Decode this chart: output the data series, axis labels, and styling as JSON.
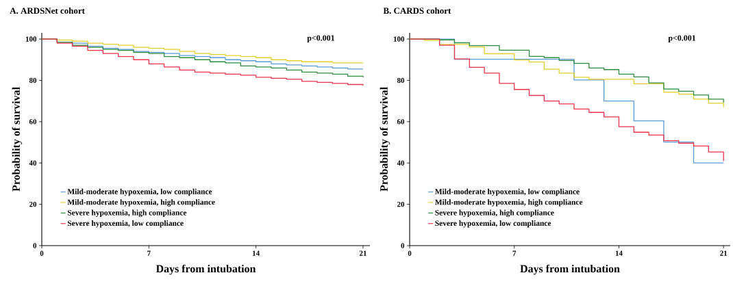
{
  "chart_data": [
    {
      "type": "step",
      "title": "A. ARDSNet cohort",
      "xlabel": "Days from intubation",
      "ylabel": "Probability of survival",
      "xlim": [
        0,
        21.45
      ],
      "ylim": [
        0,
        103
      ],
      "xticks": [
        0,
        7,
        14,
        21
      ],
      "yticks": [
        0,
        20,
        40,
        60,
        80,
        100
      ],
      "legend": "bottom left",
      "annotations": [
        "p<0.001"
      ],
      "series": [
        {
          "name": "Mild-moderate hypoxemia, low compliance",
          "color": "#5b9bd5",
          "x": [
            0,
            1,
            2,
            3,
            4,
            5,
            6,
            7,
            8,
            9,
            10,
            11,
            12,
            13,
            14,
            15,
            16,
            17,
            18,
            19,
            20,
            21
          ],
          "values": [
            100,
            98.5,
            98,
            96.5,
            95.5,
            95,
            94,
            93.5,
            93,
            92,
            91.5,
            91,
            90,
            89.5,
            89,
            88,
            87.5,
            87,
            86.5,
            86,
            85.5,
            85.5
          ]
        },
        {
          "name": "Mild-moderate hypoxemia, high compliance",
          "color": "#e3cf2b",
          "x": [
            0,
            1,
            2,
            3,
            4,
            5,
            6,
            7,
            8,
            9,
            10,
            11,
            12,
            13,
            14,
            15,
            16,
            17,
            18,
            19,
            20,
            21
          ],
          "values": [
            100,
            99.5,
            99,
            98,
            97.5,
            97,
            96,
            95.5,
            95,
            94,
            93,
            92.5,
            92,
            91.5,
            91,
            90,
            89.5,
            89,
            89,
            88.5,
            88.5,
            88.5
          ]
        },
        {
          "name": "Severe hypoxemia, high compliance",
          "color": "#2e8b3e",
          "x": [
            0,
            1,
            2,
            3,
            4,
            5,
            6,
            7,
            8,
            9,
            10,
            11,
            12,
            13,
            14,
            15,
            16,
            17,
            18,
            19,
            20,
            21
          ],
          "values": [
            100,
            98.5,
            97,
            96,
            95,
            94.5,
            93.5,
            93,
            91.5,
            91,
            90,
            89,
            88.5,
            87,
            86.5,
            86,
            85,
            84,
            83.5,
            83,
            82,
            81.5
          ]
        },
        {
          "name": "Severe hypoxemia, low compliance",
          "color": "#e8344a",
          "x": [
            0,
            1,
            2,
            3,
            4,
            5,
            6,
            7,
            8,
            9,
            10,
            11,
            12,
            13,
            14,
            15,
            16,
            17,
            18,
            19,
            20,
            21
          ],
          "values": [
            100,
            98,
            96.5,
            94.5,
            93,
            91.5,
            90,
            88,
            86.5,
            85,
            84,
            83.5,
            83,
            82.5,
            81.5,
            81,
            80.5,
            79.5,
            79,
            78.5,
            78,
            77.5
          ]
        }
      ]
    },
    {
      "type": "step",
      "title": "B. CARDS cohort",
      "xlabel": "Days from intubation",
      "ylabel": "Probability of survival",
      "xlim": [
        0,
        21.45
      ],
      "ylim": [
        0,
        103
      ],
      "xticks": [
        0,
        7,
        14,
        21
      ],
      "yticks": [
        0,
        20,
        40,
        60,
        80,
        100
      ],
      "legend": "bottom left",
      "annotations": [
        "p<0.001"
      ],
      "series": [
        {
          "name": "Mild-moderate hypoxemia, low compliance",
          "color": "#5b9bd5",
          "x": [
            0,
            3,
            11,
            13,
            15,
            17,
            19,
            21
          ],
          "values": [
            100,
            90.2,
            80.2,
            70,
            60.4,
            50.1,
            40,
            40
          ]
        },
        {
          "name": "Mild-moderate hypoxemia, high compliance",
          "color": "#e3cf2b",
          "x": [
            0,
            1,
            2,
            4,
            5,
            7,
            8,
            9,
            10,
            11,
            12,
            15,
            17,
            18,
            19,
            20,
            21
          ],
          "values": [
            100,
            99.3,
            97.4,
            96.2,
            92.9,
            89.9,
            88.9,
            85.4,
            83.5,
            81.5,
            80.5,
            78.4,
            74.2,
            73.3,
            70.9,
            68.9,
            67
          ]
        },
        {
          "name": "Severe hypoxemia, high compliance",
          "color": "#2e8b3e",
          "x": [
            0,
            2,
            3,
            4,
            6,
            8,
            9,
            10,
            11,
            12,
            13,
            14,
            15,
            16,
            17,
            18,
            19,
            20,
            21
          ],
          "values": [
            100,
            99.6,
            98.2,
            96.8,
            94.6,
            91.6,
            91,
            89.6,
            88.2,
            86,
            85.2,
            83,
            81.7,
            78.8,
            75.8,
            74.7,
            72.9,
            70.9,
            69.2
          ]
        },
        {
          "name": "Severe hypoxemia, low compliance",
          "color": "#e8344a",
          "x": [
            0,
            2,
            3,
            4,
            5,
            6,
            7,
            8,
            9,
            10,
            11,
            12,
            13,
            14,
            15,
            16,
            17,
            18,
            19,
            20,
            21
          ],
          "values": [
            100,
            97,
            90.4,
            86.3,
            83.5,
            78.5,
            75.6,
            72.7,
            70,
            68.6,
            66.1,
            64.5,
            62.3,
            57.6,
            54.9,
            53.5,
            50.8,
            49.6,
            48.2,
            45.3,
            41
          ]
        }
      ]
    }
  ]
}
